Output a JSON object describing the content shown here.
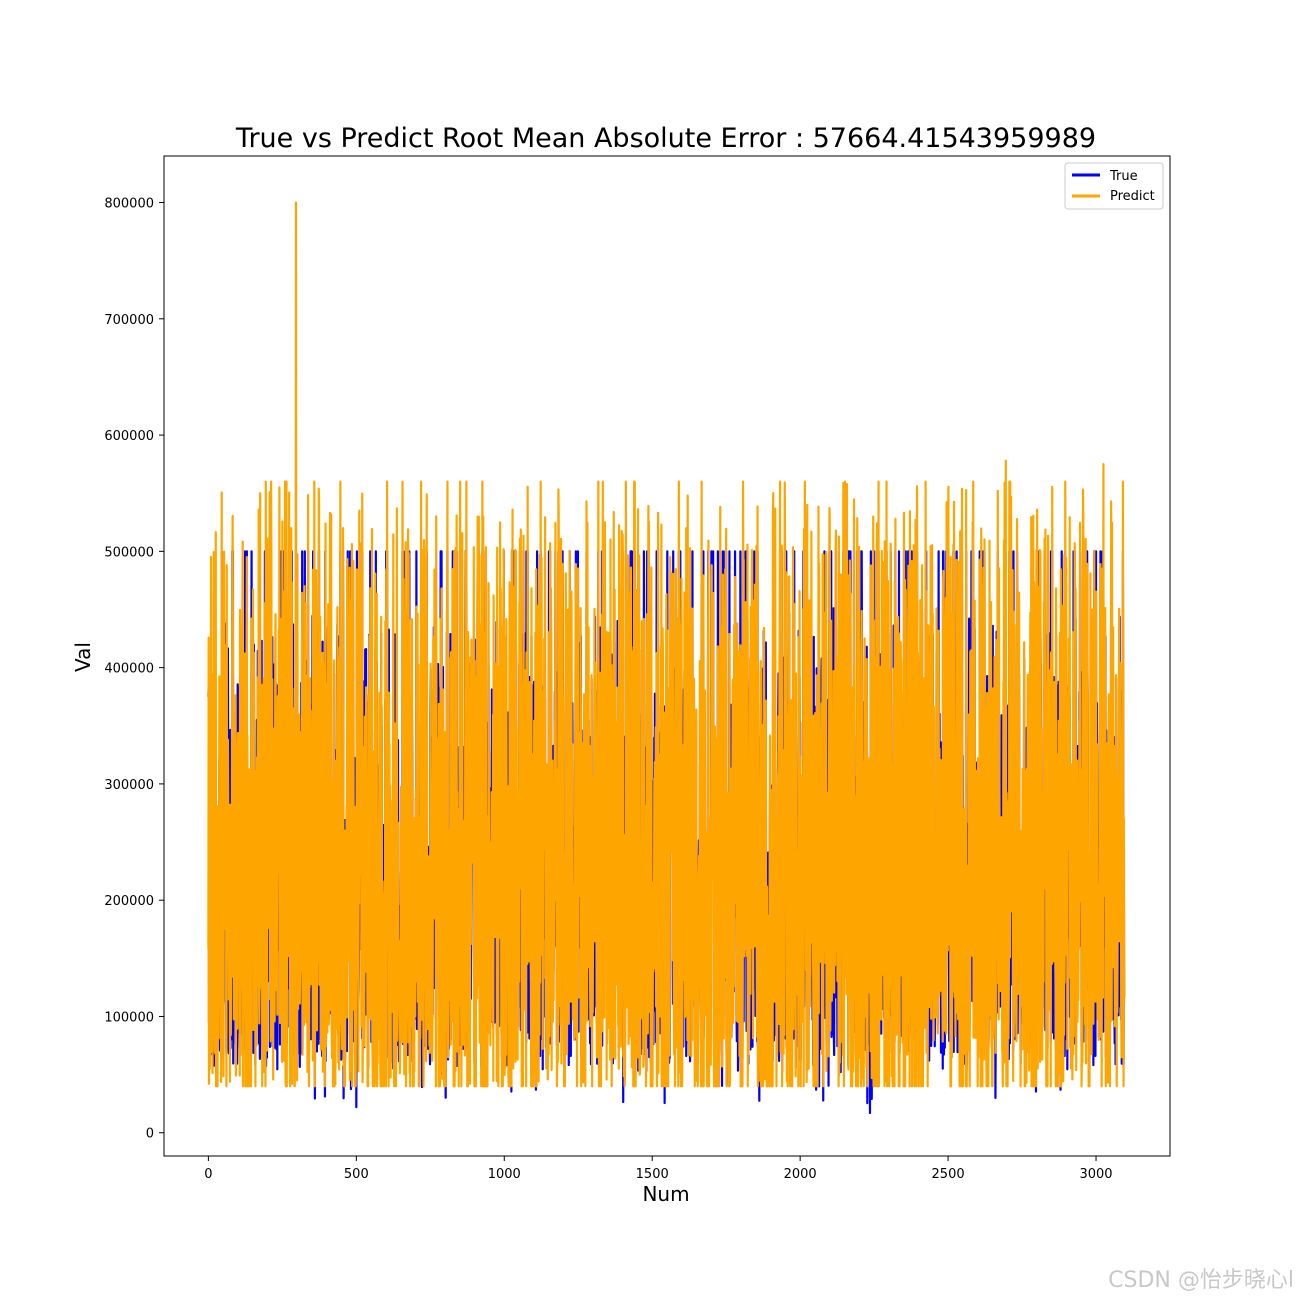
{
  "chart_data": {
    "type": "line",
    "title": "True vs Predict Root Mean Absolute Error : 57664.41543959989",
    "xlabel": "Num",
    "ylabel": "Val",
    "xlim": [
      -150,
      3250
    ],
    "ylim": [
      -20000,
      840000
    ],
    "xticks": [
      0,
      500,
      1000,
      1500,
      2000,
      2500,
      3000
    ],
    "yticks": [
      0,
      100000,
      200000,
      300000,
      400000,
      500000,
      600000,
      700000,
      800000
    ],
    "n_points": 3096,
    "grid": false,
    "legend_position": "top-right",
    "series": [
      {
        "name": "True",
        "color": "#0000ff",
        "range": [
          15000,
          500001
        ],
        "notable_points": [
          [
            0,
            375000
          ],
          [
            500,
            22000
          ],
          [
            2236,
            17000
          ],
          [
            2660,
            30000
          ],
          [
            3000,
            500001
          ]
        ]
      },
      {
        "name": "Predict",
        "color": "#ffa500",
        "range": [
          35000,
          800000
        ],
        "notable_points": [
          [
            296,
            800000
          ],
          [
            2695,
            578000
          ],
          [
            3025,
            575000
          ],
          [
            175,
            550000
          ],
          [
            240,
            555000
          ],
          [
            1620,
            548000
          ]
        ]
      }
    ]
  },
  "watermark": "CSDN @怡步晓心l"
}
